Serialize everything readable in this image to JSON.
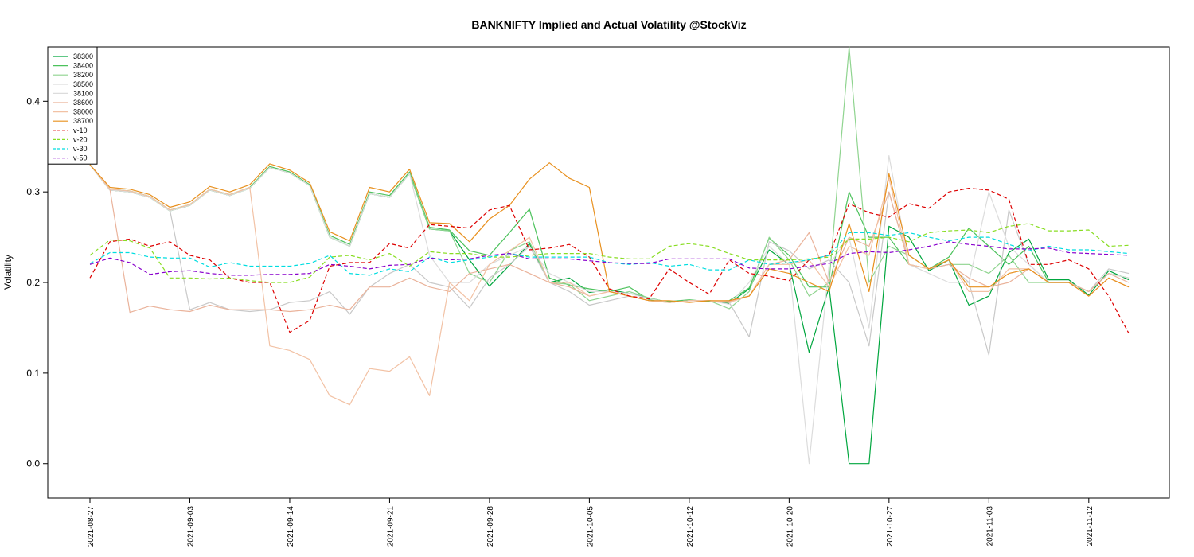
{
  "chart_data": {
    "type": "line",
    "title": "BANKNIFTY Implied and Actual Volatility @StockViz",
    "xlabel": "",
    "ylabel": "Volatility",
    "ylim": [
      -0.038,
      0.46
    ],
    "y_ticks": [
      "0.0",
      "0.1",
      "0.2",
      "0.3",
      "0.4"
    ],
    "x_ticks": [
      "2021-08-27",
      "2021-09-03",
      "2021-09-14",
      "2021-09-21",
      "2021-09-28",
      "2021-10-05",
      "2021-10-12",
      "2021-10-20",
      "2021-10-27",
      "2021-11-03",
      "2021-11-12"
    ],
    "x_tick_index": [
      0,
      5,
      10,
      15,
      20,
      25,
      30,
      35,
      40,
      45,
      50
    ],
    "n_points": 53,
    "legend_position": "top-left",
    "grid": false,
    "series": [
      {
        "name": "38300",
        "color": "#00a63e",
        "dash": "",
        "values": [
          0.33,
          0.302,
          0.3,
          0.294,
          0.279,
          0.285,
          0.302,
          0.296,
          0.304,
          0.327,
          0.321,
          0.307,
          0.25,
          0.24,
          0.298,
          0.294,
          0.32,
          0.259,
          0.257,
          0.225,
          0.196,
          0.219,
          0.243,
          0.2,
          0.205,
          0.189,
          0.192,
          0.188,
          0.183,
          0.178,
          0.18,
          0.18,
          0.177,
          0.193,
          0.236,
          0.22,
          0.123,
          0.195,
          0.0,
          0.0,
          0.262,
          0.25,
          0.213,
          0.225,
          0.175,
          0.185,
          0.233,
          0.248,
          0.203,
          0.203,
          0.186,
          0.213,
          0.203
        ]
      },
      {
        "name": "38400",
        "color": "#4cc25c",
        "dash": "",
        "values": [
          0.33,
          0.303,
          0.301,
          0.295,
          0.28,
          0.286,
          0.303,
          0.297,
          0.305,
          0.328,
          0.322,
          0.308,
          0.252,
          0.242,
          0.3,
          0.296,
          0.322,
          0.261,
          0.258,
          0.235,
          0.23,
          0.255,
          0.281,
          0.205,
          0.197,
          0.193,
          0.19,
          0.195,
          0.181,
          0.179,
          0.181,
          0.179,
          0.18,
          0.194,
          0.249,
          0.23,
          0.195,
          0.195,
          0.3,
          0.25,
          0.25,
          0.22,
          0.215,
          0.228,
          0.26,
          0.24,
          0.22,
          0.24,
          0.2,
          0.2,
          0.19,
          0.21,
          0.205
        ]
      },
      {
        "name": "38200",
        "color": "#8fd48f",
        "dash": "",
        "values": [
          0.33,
          0.302,
          0.3,
          0.294,
          0.279,
          0.285,
          0.302,
          0.296,
          0.304,
          0.327,
          0.321,
          0.307,
          0.25,
          0.24,
          0.298,
          0.294,
          0.32,
          0.259,
          0.257,
          0.21,
          0.2,
          0.235,
          0.245,
          0.2,
          0.198,
          0.18,
          0.185,
          0.19,
          0.183,
          0.178,
          0.18,
          0.18,
          0.171,
          0.19,
          0.25,
          0.225,
          0.185,
          0.2,
          0.46,
          0.2,
          0.24,
          0.23,
          0.215,
          0.22,
          0.22,
          0.21,
          0.23,
          0.2,
          0.2,
          0.2,
          0.19,
          0.21,
          0.205
        ]
      },
      {
        "name": "38500",
        "color": "#c8c8c8",
        "dash": "",
        "values": [
          0.33,
          0.302,
          0.3,
          0.294,
          0.28,
          0.17,
          0.178,
          0.17,
          0.168,
          0.17,
          0.178,
          0.18,
          0.19,
          0.165,
          0.195,
          0.21,
          0.22,
          0.2,
          0.195,
          0.172,
          0.205,
          0.22,
          0.24,
          0.2,
          0.19,
          0.175,
          0.18,
          0.185,
          0.18,
          0.178,
          0.18,
          0.18,
          0.178,
          0.14,
          0.245,
          0.235,
          0.215,
          0.225,
          0.2,
          0.13,
          0.3,
          0.22,
          0.215,
          0.22,
          0.2,
          0.12,
          0.28,
          0.22,
          0.2,
          0.2,
          0.19,
          0.215,
          0.21
        ]
      },
      {
        "name": "38100",
        "color": "#dcdcdc",
        "dash": "",
        "values": [
          0.33,
          0.302,
          0.3,
          0.294,
          0.279,
          0.285,
          0.302,
          0.296,
          0.304,
          0.327,
          0.321,
          0.307,
          0.25,
          0.24,
          0.298,
          0.294,
          0.32,
          0.23,
          0.2,
          0.2,
          0.22,
          0.23,
          0.24,
          0.21,
          0.2,
          0.19,
          0.19,
          0.188,
          0.182,
          0.178,
          0.18,
          0.18,
          0.176,
          0.2,
          0.24,
          0.22,
          0.0,
          0.22,
          0.25,
          0.15,
          0.34,
          0.22,
          0.21,
          0.2,
          0.2,
          0.3,
          0.24,
          0.22,
          0.2,
          0.2,
          0.19,
          0.21,
          0.205
        ]
      },
      {
        "name": "38600",
        "color": "#eab39b",
        "dash": "",
        "values": [
          0.33,
          0.303,
          0.167,
          0.174,
          0.17,
          0.168,
          0.175,
          0.17,
          0.17,
          0.17,
          0.168,
          0.17,
          0.175,
          0.17,
          0.195,
          0.195,
          0.205,
          0.195,
          0.19,
          0.21,
          0.215,
          0.22,
          0.21,
          0.2,
          0.195,
          0.185,
          0.19,
          0.185,
          0.18,
          0.178,
          0.18,
          0.18,
          0.179,
          0.185,
          0.22,
          0.225,
          0.255,
          0.2,
          0.25,
          0.24,
          0.3,
          0.22,
          0.215,
          0.22,
          0.205,
          0.195,
          0.2,
          0.215,
          0.2,
          0.2,
          0.19,
          0.21,
          0.2
        ]
      },
      {
        "name": "38000",
        "color": "#f2c2a5",
        "dash": "",
        "values": [
          0.33,
          0.303,
          0.301,
          0.295,
          0.28,
          0.286,
          0.303,
          0.297,
          0.305,
          0.13,
          0.125,
          0.115,
          0.075,
          0.065,
          0.105,
          0.102,
          0.118,
          0.075,
          0.2,
          0.18,
          0.22,
          0.235,
          0.25,
          0.2,
          0.2,
          0.185,
          0.19,
          0.185,
          0.18,
          0.178,
          0.18,
          0.18,
          0.178,
          0.185,
          0.22,
          0.22,
          0.225,
          0.195,
          0.24,
          0.23,
          0.315,
          0.22,
          0.215,
          0.225,
          0.19,
          0.19,
          0.215,
          0.215,
          0.2,
          0.2,
          0.185,
          0.205,
          0.195
        ]
      },
      {
        "name": "38700",
        "color": "#e8901e",
        "dash": "",
        "values": [
          0.33,
          0.305,
          0.303,
          0.297,
          0.283,
          0.289,
          0.306,
          0.3,
          0.308,
          0.331,
          0.324,
          0.31,
          0.256,
          0.246,
          0.305,
          0.3,
          0.325,
          0.266,
          0.265,
          0.245,
          0.27,
          0.285,
          0.314,
          0.332,
          0.315,
          0.305,
          0.19,
          0.185,
          0.18,
          0.18,
          0.178,
          0.18,
          0.18,
          0.185,
          0.215,
          0.21,
          0.2,
          0.19,
          0.265,
          0.19,
          0.32,
          0.23,
          0.215,
          0.225,
          0.195,
          0.195,
          0.21,
          0.215,
          0.2,
          0.2,
          0.185,
          0.205,
          0.195
        ]
      },
      {
        "name": "v-10",
        "color": "#dd0000",
        "dash": "5,3",
        "values": [
          0.205,
          0.245,
          0.248,
          0.24,
          0.245,
          0.23,
          0.225,
          0.205,
          0.2,
          0.2,
          0.145,
          0.158,
          0.218,
          0.222,
          0.222,
          0.243,
          0.238,
          0.264,
          0.262,
          0.26,
          0.28,
          0.285,
          0.236,
          0.238,
          0.242,
          0.228,
          0.193,
          0.185,
          0.182,
          0.215,
          0.2,
          0.187,
          0.225,
          0.21,
          0.207,
          0.202,
          0.225,
          0.23,
          0.287,
          0.277,
          0.272,
          0.287,
          0.282,
          0.3,
          0.304,
          0.302,
          0.292,
          0.22,
          0.22,
          0.225,
          0.215,
          0.185,
          0.144
        ]
      },
      {
        "name": "v-20",
        "color": "#88dd22",
        "dash": "5,3",
        "values": [
          0.23,
          0.247,
          0.246,
          0.238,
          0.205,
          0.205,
          0.204,
          0.205,
          0.202,
          0.2,
          0.2,
          0.206,
          0.228,
          0.23,
          0.225,
          0.232,
          0.218,
          0.234,
          0.232,
          0.232,
          0.228,
          0.228,
          0.23,
          0.232,
          0.232,
          0.232,
          0.228,
          0.226,
          0.226,
          0.24,
          0.243,
          0.24,
          0.232,
          0.225,
          0.225,
          0.225,
          0.226,
          0.228,
          0.248,
          0.248,
          0.25,
          0.245,
          0.255,
          0.257,
          0.258,
          0.255,
          0.262,
          0.265,
          0.257,
          0.257,
          0.258,
          0.24,
          0.241
        ]
      },
      {
        "name": "v-30",
        "color": "#00dde0",
        "dash": "5,3",
        "values": [
          0.221,
          0.233,
          0.233,
          0.228,
          0.227,
          0.227,
          0.217,
          0.222,
          0.218,
          0.218,
          0.218,
          0.221,
          0.23,
          0.21,
          0.208,
          0.215,
          0.212,
          0.228,
          0.222,
          0.225,
          0.228,
          0.232,
          0.228,
          0.228,
          0.228,
          0.228,
          0.222,
          0.22,
          0.222,
          0.218,
          0.22,
          0.214,
          0.214,
          0.225,
          0.22,
          0.222,
          0.225,
          0.23,
          0.255,
          0.255,
          0.252,
          0.255,
          0.25,
          0.246,
          0.25,
          0.25,
          0.242,
          0.235,
          0.24,
          0.236,
          0.236,
          0.234,
          0.232
        ]
      },
      {
        "name": "v-50",
        "color": "#8800cc",
        "dash": "5,3",
        "values": [
          0.22,
          0.227,
          0.222,
          0.209,
          0.212,
          0.213,
          0.21,
          0.208,
          0.208,
          0.209,
          0.209,
          0.21,
          0.22,
          0.218,
          0.215,
          0.219,
          0.22,
          0.227,
          0.225,
          0.226,
          0.23,
          0.232,
          0.226,
          0.226,
          0.226,
          0.224,
          0.222,
          0.221,
          0.221,
          0.226,
          0.226,
          0.226,
          0.226,
          0.216,
          0.215,
          0.215,
          0.218,
          0.221,
          0.232,
          0.234,
          0.233,
          0.236,
          0.24,
          0.245,
          0.242,
          0.24,
          0.237,
          0.237,
          0.238,
          0.233,
          0.232,
          0.231,
          0.23
        ]
      }
    ]
  }
}
